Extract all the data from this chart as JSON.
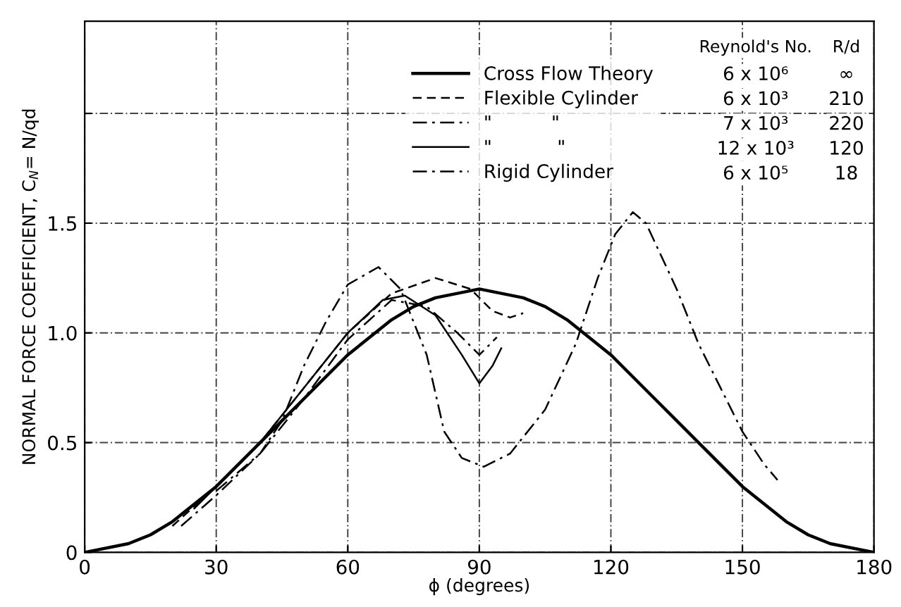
{
  "chart_data": {
    "type": "line",
    "xlabel": "ϕ (degrees)",
    "ylabel": "NORMAL FORCE COEFFICIENT, C$_{N}$= N/qd",
    "xlim": [
      0,
      180
    ],
    "xticks": [
      0,
      30,
      60,
      90,
      120,
      150,
      180
    ],
    "ylim": [
      0,
      2.42
    ],
    "yticks": [
      0,
      0.5,
      {
        "value": 1.0,
        "label": "1.0"
      },
      1.5,
      {
        "value": 2.0,
        "label": null
      }
    ],
    "grid": true,
    "legend": "top right",
    "marker": "none",
    "annotations": [
      "Reynold's No.",
      "R/d",
      "6 x 10⁶",
      "∞",
      "6 x 10³",
      "210",
      "7 x 10³",
      "220",
      "12 x 10³",
      "120",
      "6 x 10⁵",
      "18"
    ],
    "series": [
      {
        "name": "Cross Flow Theory",
        "color": "#000000",
        "line_style": "solid",
        "x": [
          0,
          10,
          15,
          20,
          30,
          40,
          45,
          50,
          60,
          70,
          75,
          80,
          90,
          100,
          105,
          110,
          120,
          130,
          135,
          140,
          150,
          160,
          165,
          170,
          180
        ],
        "values": [
          0,
          0.04,
          0.08,
          0.14,
          0.3,
          0.5,
          0.6,
          0.7,
          0.9,
          1.06,
          1.12,
          1.16,
          1.2,
          1.16,
          1.12,
          1.06,
          0.9,
          0.7,
          0.6,
          0.5,
          0.3,
          0.14,
          0.08,
          0.04,
          0
        ]
      },
      {
        "name": "Flexible Cylinder",
        "color": "#000000",
        "line_style": "dashed",
        "x": [
          20,
          30,
          40,
          50,
          60,
          70,
          80,
          88,
          93,
          97,
          100
        ],
        "values": [
          0.12,
          0.3,
          0.5,
          0.75,
          1.0,
          1.18,
          1.25,
          1.2,
          1.1,
          1.07,
          1.09
        ]
      },
      {
        "name": "\"          \"",
        "color": "#000000",
        "line_style": "dashdot",
        "x": [
          22,
          30,
          40,
          50,
          60,
          70,
          78,
          85,
          90,
          94
        ],
        "values": [
          0.12,
          0.26,
          0.45,
          0.7,
          0.97,
          1.15,
          1.12,
          1.0,
          0.9,
          0.98
        ]
      },
      {
        "name": "\"           \"",
        "color": "#000000",
        "line_style": "solid",
        "x": [
          25,
          30,
          40,
          50,
          60,
          68,
          73,
          80,
          86,
          90,
          93,
          95
        ],
        "values": [
          0.2,
          0.3,
          0.5,
          0.75,
          1.0,
          1.15,
          1.17,
          1.08,
          0.9,
          0.77,
          0.85,
          0.93
        ]
      },
      {
        "name": "Rigid Cylinder",
        "color": "#000000",
        "line_style": "dashdot",
        "x": [
          30,
          40,
          45,
          50,
          55,
          60,
          67,
          72,
          78,
          82,
          86,
          91,
          97,
          105,
          112,
          117,
          121,
          125,
          128,
          135,
          140,
          145,
          150,
          155,
          158
        ],
        "values": [
          0.28,
          0.45,
          0.6,
          0.85,
          1.05,
          1.22,
          1.3,
          1.2,
          0.9,
          0.55,
          0.43,
          0.39,
          0.45,
          0.65,
          0.95,
          1.25,
          1.45,
          1.55,
          1.5,
          1.2,
          0.95,
          0.75,
          0.55,
          0.4,
          0.33
        ]
      }
    ]
  }
}
